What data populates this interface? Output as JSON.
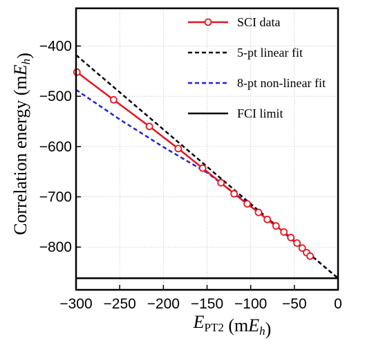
{
  "chart_data": {
    "type": "line",
    "title": "",
    "xlabel": "E_PT2 (mE_h)",
    "ylabel": "Correlation energy (mE_h)",
    "xlim": [
      -300,
      0
    ],
    "ylim": [
      -885,
      -325
    ],
    "xticks": [
      -300,
      -250,
      -200,
      -150,
      -100,
      -50,
      0
    ],
    "yticks": [
      -400,
      -500,
      -600,
      -700,
      -800
    ],
    "xtick_labels": [
      "−300",
      "−250",
      "−200",
      "−150",
      "−100",
      "−50",
      "0"
    ],
    "ytick_labels": [
      "−400",
      "−500",
      "−600",
      "−700",
      "−800"
    ],
    "grid": true,
    "legend_position": "top-right",
    "series": [
      {
        "name": "SCI data",
        "style": "solid-with-open-circles",
        "color": "#e8141c",
        "x": [
          -299,
          -257,
          -216,
          -183,
          -155,
          -134,
          -119,
          -104,
          -91,
          -81,
          -71,
          -62,
          -54,
          -47,
          -41,
          -36,
          -32
        ],
        "y": [
          -452,
          -507,
          -560,
          -604,
          -643,
          -672,
          -694,
          -714,
          -731,
          -745,
          -758,
          -770,
          -781,
          -792,
          -802,
          -811,
          -818
        ]
      },
      {
        "name": "5-pt linear fit",
        "style": "dashed",
        "color": "#000000",
        "x": [
          -300,
          0
        ],
        "y": [
          -418,
          -862
        ]
      },
      {
        "name": "8-pt non-linear fit",
        "style": "dashed",
        "color": "#1f1fe0",
        "x": [
          -300,
          -250,
          -200,
          -150,
          -100,
          -50,
          0
        ],
        "y": [
          -487,
          -546,
          -601,
          -652,
          -717,
          -789,
          -862
        ]
      },
      {
        "name": "FCI limit",
        "style": "solid",
        "color": "#000000",
        "x": [
          -300,
          0
        ],
        "y": [
          -862,
          -862
        ]
      }
    ]
  }
}
